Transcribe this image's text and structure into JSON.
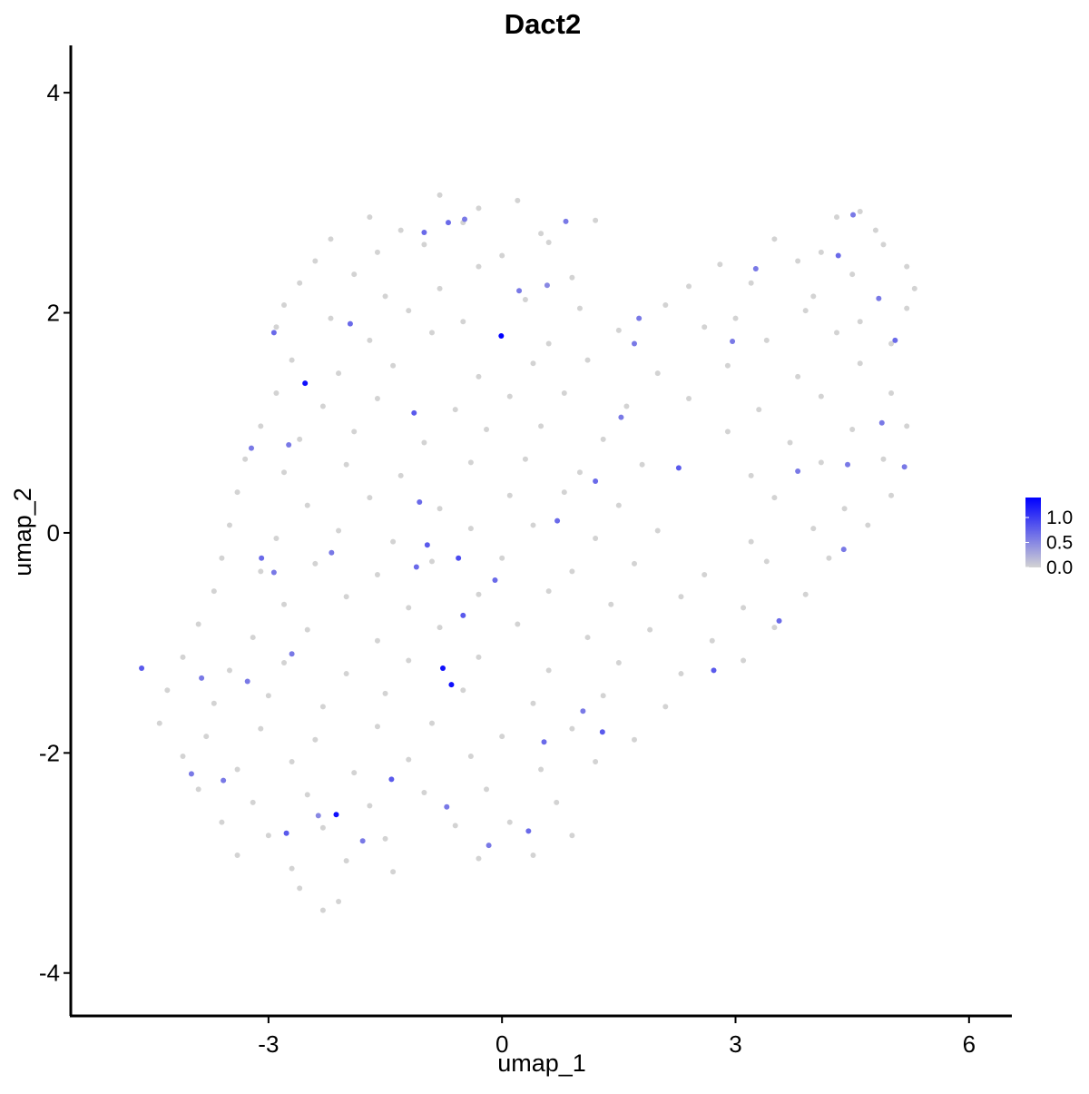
{
  "chart_data": {
    "type": "scatter",
    "title": "Dact2",
    "x_label": "umap_1",
    "y_label": "umap_2",
    "xlim": [
      -5.54,
      6.55
    ],
    "ylim": [
      -4.39,
      4.43
    ],
    "xticks": [
      -3,
      0,
      3,
      6
    ],
    "yticks": [
      -4,
      -2,
      0,
      2,
      4
    ],
    "color_low": "#d3d3d3",
    "color_high": "#0000ff",
    "colorbar_lim": [
      0,
      1.4
    ],
    "colorbar_ticks": [
      {
        "value": 0,
        "label": "0.0"
      },
      {
        "value": 0.5,
        "label": "0.5"
      },
      {
        "value": 1,
        "label": "1.0"
      }
    ],
    "x": [
      -0.8,
      -0.3,
      0.2,
      4.6,
      -1.7,
      -1.3,
      -0.5,
      0.5,
      1.2,
      4.3,
      4.8,
      -2.2,
      -1.6,
      -1.0,
      0.0,
      0.6,
      3.5,
      4.1,
      4.9,
      -2.4,
      -1.9,
      -0.3,
      0.9,
      2.8,
      3.8,
      4.5,
      5.2,
      -2.6,
      -1.5,
      -0.8,
      0.3,
      2.4,
      3.2,
      4.0,
      5.3,
      -2.8,
      -2.2,
      -1.2,
      -0.5,
      1.0,
      2.1,
      3.0,
      3.9,
      4.6,
      5.2,
      -2.9,
      -1.7,
      -0.9,
      0.6,
      1.5,
      2.6,
      3.4,
      4.3,
      5.0,
      -2.7,
      -2.1,
      -1.4,
      -0.3,
      0.4,
      1.1,
      2.0,
      2.9,
      3.8,
      4.6,
      -2.9,
      -2.3,
      -1.6,
      -0.6,
      0.1,
      0.8,
      1.6,
      2.4,
      3.3,
      4.1,
      5.0,
      -3.1,
      -2.6,
      -1.9,
      -1.0,
      -0.2,
      0.5,
      1.3,
      2.9,
      3.7,
      4.5,
      5.2,
      -3.3,
      -2.8,
      -2.0,
      -1.3,
      -0.4,
      0.3,
      1.0,
      1.8,
      3.2,
      4.1,
      4.9,
      -3.4,
      -2.5,
      -1.7,
      -0.8,
      0.1,
      0.8,
      1.5,
      3.5,
      4.4,
      5.0,
      -3.5,
      -2.9,
      -2.1,
      -1.4,
      -0.4,
      0.4,
      1.2,
      2.0,
      3.2,
      4.0,
      4.7,
      -3.6,
      -3.1,
      -2.4,
      -1.6,
      -0.9,
      0.0,
      0.9,
      1.7,
      2.6,
      3.4,
      4.2,
      -3.7,
      -2.8,
      -2.0,
      -1.2,
      -0.3,
      0.6,
      1.4,
      2.3,
      3.1,
      3.9,
      -3.9,
      -3.2,
      -2.5,
      -1.6,
      -0.8,
      0.2,
      1.1,
      1.9,
      2.7,
      3.5,
      -4.1,
      -3.5,
      -2.8,
      -2.0,
      -1.2,
      -0.3,
      0.6,
      1.5,
      2.3,
      3.1,
      -4.3,
      -3.7,
      -3.0,
      -2.3,
      -1.5,
      -0.5,
      0.4,
      1.3,
      2.1,
      -4.4,
      -3.8,
      -3.1,
      -2.4,
      -1.6,
      -0.9,
      0.0,
      0.9,
      1.7,
      -4.1,
      -3.4,
      -2.7,
      -1.9,
      -1.2,
      -0.4,
      0.5,
      1.2,
      -3.9,
      -3.2,
      -2.5,
      -1.7,
      -1.0,
      -0.2,
      0.7,
      -3.6,
      -3.0,
      -2.3,
      -1.5,
      -0.6,
      0.1,
      0.9,
      -3.4,
      -2.7,
      -2.0,
      -1.4,
      -0.3,
      0.4,
      -2.6,
      -2.1,
      -2.3,
      -0.01,
      -2.53,
      -0.76,
      -0.65,
      -2.13,
      -4.63,
      -2.93,
      -1.95,
      -1.0,
      -0.69,
      -0.48,
      0.82,
      0.22,
      0.58,
      1.7,
      1.76,
      2.96,
      3.26,
      4.32,
      4.51,
      4.84,
      5.05,
      4.88,
      5.17,
      4.44,
      3.8,
      2.27,
      -1.13,
      -1.06,
      -0.56,
      -0.09,
      -0.96,
      -1.1,
      -2.93,
      -3.09,
      -2.19,
      -2.7,
      -0.5,
      0.71,
      1.29,
      0.54,
      1.04,
      -1.42,
      -2.77,
      -1.79,
      0.34,
      -0.17,
      -3.99,
      -3.58,
      2.72,
      3.56,
      4.39,
      1.2,
      1.53,
      -3.22,
      -2.74,
      -3.86,
      -3.27,
      -2.36,
      -0.71
    ],
    "y": [
      3.07,
      2.95,
      3.02,
      2.92,
      2.87,
      2.75,
      2.82,
      2.72,
      2.84,
      2.87,
      2.75,
      2.67,
      2.55,
      2.62,
      2.52,
      2.64,
      2.67,
      2.55,
      2.62,
      2.47,
      2.35,
      2.42,
      2.32,
      2.44,
      2.47,
      2.35,
      2.42,
      2.27,
      2.15,
      2.22,
      2.12,
      2.24,
      2.27,
      2.15,
      2.22,
      2.07,
      1.95,
      2.02,
      1.92,
      2.04,
      2.07,
      1.95,
      2.02,
      1.92,
      2.04,
      1.87,
      1.75,
      1.82,
      1.72,
      1.84,
      1.87,
      1.75,
      1.82,
      1.72,
      1.57,
      1.45,
      1.52,
      1.42,
      1.54,
      1.57,
      1.45,
      1.52,
      1.42,
      1.54,
      1.27,
      1.15,
      1.22,
      1.12,
      1.24,
      1.27,
      1.15,
      1.22,
      1.12,
      1.24,
      1.27,
      0.97,
      0.85,
      0.92,
      0.82,
      0.94,
      0.97,
      0.85,
      0.92,
      0.82,
      0.94,
      0.97,
      0.67,
      0.55,
      0.62,
      0.52,
      0.64,
      0.67,
      0.55,
      0.62,
      0.52,
      0.64,
      0.67,
      0.37,
      0.25,
      0.32,
      0.22,
      0.34,
      0.37,
      0.25,
      0.32,
      0.22,
      0.34,
      0.07,
      -0.05,
      0.02,
      -0.08,
      0.04,
      0.07,
      -0.05,
      0.02,
      -0.08,
      0.04,
      0.07,
      -0.23,
      -0.35,
      -0.28,
      -0.38,
      -0.26,
      -0.23,
      -0.35,
      -0.28,
      -0.38,
      -0.26,
      -0.23,
      -0.53,
      -0.65,
      -0.58,
      -0.68,
      -0.56,
      -0.53,
      -0.65,
      -0.58,
      -0.68,
      -0.56,
      -0.83,
      -0.95,
      -0.88,
      -0.98,
      -0.86,
      -0.83,
      -0.95,
      -0.88,
      -0.98,
      -0.86,
      -1.13,
      -1.25,
      -1.18,
      -1.28,
      -1.16,
      -1.13,
      -1.25,
      -1.18,
      -1.28,
      -1.16,
      -1.43,
      -1.55,
      -1.48,
      -1.58,
      -1.46,
      -1.43,
      -1.55,
      -1.48,
      -1.58,
      -1.73,
      -1.85,
      -1.78,
      -1.88,
      -1.76,
      -1.73,
      -1.85,
      -1.78,
      -1.88,
      -2.03,
      -2.15,
      -2.08,
      -2.18,
      -2.06,
      -2.03,
      -2.15,
      -2.08,
      -2.33,
      -2.45,
      -2.38,
      -2.48,
      -2.36,
      -2.33,
      -2.45,
      -2.63,
      -2.75,
      -2.68,
      -2.78,
      -2.66,
      -2.63,
      -2.75,
      -2.93,
      -3.05,
      -2.98,
      -3.08,
      -2.96,
      -2.93,
      -3.23,
      -3.35,
      -3.43,
      1.79,
      1.36,
      -1.23,
      -1.38,
      -2.56,
      -1.23,
      1.82,
      1.9,
      2.73,
      2.82,
      2.85,
      2.83,
      2.2,
      2.25,
      1.72,
      1.95,
      1.74,
      2.4,
      2.52,
      2.89,
      2.13,
      1.75,
      1.0,
      0.6,
      0.62,
      0.56,
      0.59,
      1.09,
      0.28,
      -0.23,
      -0.43,
      -0.11,
      -0.31,
      -0.36,
      -0.23,
      -0.18,
      -1.1,
      -0.75,
      0.11,
      -1.81,
      -1.9,
      -1.62,
      -2.24,
      -2.73,
      -2.8,
      -2.71,
      -2.84,
      -2.19,
      -2.25,
      -1.25,
      -0.8,
      -0.15,
      0.47,
      1.05,
      0.77,
      0.8,
      -1.32,
      -1.35,
      -2.57,
      -2.49
    ],
    "values": [
      0,
      0,
      0,
      0,
      0,
      0,
      0,
      0,
      0,
      0,
      0,
      0,
      0,
      0,
      0,
      0,
      0,
      0,
      0,
      0,
      0,
      0,
      0,
      0,
      0,
      0,
      0,
      0,
      0,
      0,
      0,
      0,
      0,
      0,
      0,
      0,
      0,
      0,
      0,
      0,
      0,
      0,
      0,
      0,
      0,
      0,
      0,
      0,
      0,
      0,
      0,
      0,
      0,
      0,
      0,
      0,
      0,
      0,
      0,
      0,
      0,
      0,
      0,
      0,
      0,
      0,
      0,
      0,
      0,
      0,
      0,
      0,
      0,
      0,
      0,
      0,
      0,
      0,
      0,
      0,
      0,
      0,
      0,
      0,
      0,
      0,
      0,
      0,
      0,
      0,
      0,
      0,
      0,
      0,
      0,
      0,
      0,
      0,
      0,
      0,
      0,
      0,
      0,
      0,
      0,
      0,
      0,
      0,
      0,
      0,
      0,
      0,
      0,
      0,
      0,
      0,
      0,
      0,
      0,
      0,
      0,
      0,
      0,
      0,
      0,
      0,
      0,
      0,
      0,
      0,
      0,
      0,
      0,
      0,
      0,
      0,
      0,
      0,
      0,
      0,
      0,
      0,
      0,
      0,
      0,
      0,
      0,
      0,
      0,
      0,
      0,
      0,
      0,
      0,
      0,
      0,
      0,
      0,
      0,
      0,
      0,
      0,
      0,
      0,
      0,
      0,
      0,
      0,
      0,
      0,
      0,
      0,
      0,
      0,
      0,
      0,
      0,
      0,
      0,
      0,
      0,
      0,
      0,
      0,
      0,
      0,
      0,
      0,
      0,
      0,
      0,
      0,
      0,
      0,
      0,
      0,
      0,
      0,
      0,
      0,
      0,
      0,
      0,
      0,
      0,
      0,
      0,
      0,
      1.4,
      1.3,
      1.3,
      1.3,
      1.3,
      0.8,
      0.7,
      0.7,
      0.7,
      0.7,
      0.6,
      0.6,
      0.6,
      0.5,
      0.6,
      0.6,
      0.6,
      0.6,
      0.7,
      0.6,
      0.6,
      0.7,
      0.6,
      0.6,
      0.6,
      0.6,
      0.8,
      0.8,
      0.7,
      0.9,
      0.7,
      0.8,
      0.7,
      0.6,
      0.7,
      0.6,
      0.6,
      0.8,
      0.7,
      0.8,
      0.7,
      0.6,
      0.8,
      0.8,
      0.6,
      0.7,
      0.6,
      0.6,
      0.6,
      0.8,
      0.7,
      0.6,
      0.7,
      0.6,
      0.6,
      0.6,
      0.6,
      0.6,
      0.5,
      0.6
    ]
  }
}
